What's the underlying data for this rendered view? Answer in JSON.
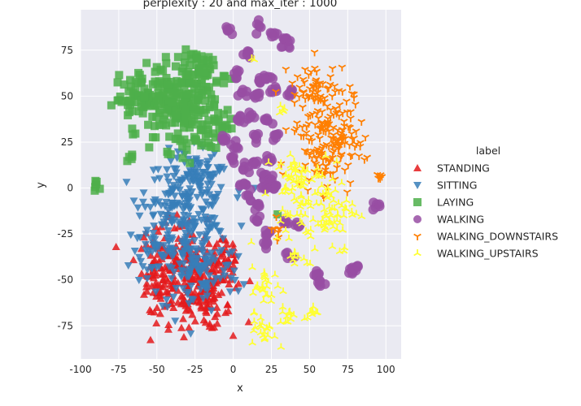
{
  "chart_data": {
    "type": "scatter",
    "title": "perplexity : 20 and max_iter : 1000",
    "xlabel": "x",
    "ylabel": "y",
    "xlim": [
      -100,
      110
    ],
    "ylim": [
      -93,
      97
    ],
    "xticks": [
      -100,
      -75,
      -50,
      -25,
      0,
      25,
      50,
      75,
      100
    ],
    "yticks": [
      -75,
      -50,
      -25,
      0,
      25,
      50,
      75
    ],
    "grid": true,
    "background": "#eaeaf2",
    "legend": {
      "title": "label",
      "placement": "right",
      "entries": [
        "STANDING",
        "SITTING",
        "LAYING",
        "WALKING",
        "WALKING_DOWNSTAIRS",
        "WALKING_UPSTAIRS"
      ]
    },
    "series": [
      {
        "name": "STANDING",
        "color": "#e41a1c",
        "marker": "triangle-up",
        "clusters": [
          {
            "cx": -28,
            "cy": -47,
            "sx": 14,
            "sy": 13,
            "n": 230
          },
          {
            "cx": -48,
            "cy": -42,
            "sx": 6,
            "sy": 12,
            "n": 60
          },
          {
            "cx": -18,
            "cy": -65,
            "sx": 8,
            "sy": 6,
            "n": 40
          },
          {
            "cx": -5,
            "cy": -40,
            "sx": 5,
            "sy": 9,
            "n": 30
          }
        ]
      },
      {
        "name": "SITTING",
        "color": "#377eb8",
        "marker": "triangle-down",
        "clusters": [
          {
            "cx": -30,
            "cy": -12,
            "sx": 14,
            "sy": 15,
            "n": 210
          },
          {
            "cx": -25,
            "cy": -45,
            "sx": 15,
            "sy": 12,
            "n": 120
          },
          {
            "cx": -52,
            "cy": -20,
            "sx": 5,
            "sy": 12,
            "n": 40
          },
          {
            "cx": -25,
            "cy": 8,
            "sx": 8,
            "sy": 6,
            "n": 40
          }
        ]
      },
      {
        "name": "LAYING",
        "color": "#4daf4a",
        "marker": "square",
        "clusters": [
          {
            "cx": -35,
            "cy": 45,
            "sx": 13,
            "sy": 12,
            "n": 230
          },
          {
            "cx": -62,
            "cy": 48,
            "sx": 8,
            "sy": 6,
            "n": 50
          },
          {
            "cx": -20,
            "cy": 65,
            "sx": 8,
            "sy": 5,
            "n": 40
          },
          {
            "cx": -10,
            "cy": 35,
            "sx": 5,
            "sy": 6,
            "n": 20
          },
          {
            "cx": -68,
            "cy": 15,
            "sx": 1.5,
            "sy": 2,
            "n": 5
          },
          {
            "cx": -89,
            "cy": 1,
            "sx": 2,
            "sy": 1.5,
            "n": 6
          },
          {
            "cx": 29,
            "cy": -14,
            "sx": 0.3,
            "sy": 0.3,
            "n": 1
          }
        ]
      },
      {
        "name": "WALKING",
        "color": "#984ea3",
        "marker": "circle",
        "points": [
          [
            -2,
            86
          ],
          [
            17,
            88
          ],
          [
            26,
            84
          ],
          [
            34,
            80
          ],
          [
            10,
            73
          ],
          [
            18,
            58
          ],
          [
            22,
            60
          ],
          [
            2,
            63
          ],
          [
            26,
            53
          ],
          [
            37,
            52
          ],
          [
            6,
            52
          ],
          [
            15,
            50
          ],
          [
            12,
            38
          ],
          [
            5,
            38
          ],
          [
            22,
            36
          ],
          [
            -6,
            27
          ],
          [
            0,
            22
          ],
          [
            15,
            28
          ],
          [
            28,
            28
          ],
          [
            23,
            16
          ],
          [
            14,
            14
          ],
          [
            0,
            17
          ],
          [
            8,
            10
          ],
          [
            20,
            5
          ],
          [
            25,
            5
          ],
          [
            8,
            2
          ],
          [
            22,
            0
          ],
          [
            27,
            0
          ],
          [
            10,
            -5
          ],
          [
            16,
            -10
          ],
          [
            15,
            -18
          ],
          [
            22,
            -25
          ],
          [
            22,
            -30
          ],
          [
            36,
            -37
          ],
          [
            42,
            -20
          ],
          [
            34,
            -20
          ],
          [
            55,
            -47
          ],
          [
            57,
            -52
          ],
          [
            78,
            -45
          ],
          [
            81,
            -43
          ],
          [
            93,
            -10
          ],
          [
            35,
            78
          ]
        ]
      },
      {
        "name": "WALKING_DOWNSTAIRS",
        "color": "#ff7f00",
        "marker": "tri-down",
        "clusters": [
          {
            "cx": 58,
            "cy": 32,
            "sx": 10,
            "sy": 16,
            "n": 160
          },
          {
            "cx": 72,
            "cy": 20,
            "sx": 6,
            "sy": 8,
            "n": 40
          },
          {
            "cx": 50,
            "cy": 55,
            "sx": 6,
            "sy": 6,
            "n": 30
          },
          {
            "cx": 96,
            "cy": 6,
            "sx": 2,
            "sy": 1.5,
            "n": 6
          },
          {
            "cx": 30,
            "cy": -22,
            "sx": 2,
            "sy": 3,
            "n": 8
          }
        ]
      },
      {
        "name": "WALKING_UPSTAIRS",
        "color": "#ffff33",
        "marker": "tri-up",
        "clusters": [
          {
            "cx": 55,
            "cy": -10,
            "sx": 13,
            "sy": 13,
            "n": 110
          },
          {
            "cx": 40,
            "cy": 8,
            "sx": 5,
            "sy": 6,
            "n": 30
          },
          {
            "cx": 22,
            "cy": -55,
            "sx": 5,
            "sy": 6,
            "n": 25
          },
          {
            "cx": 20,
            "cy": -78,
            "sx": 4,
            "sy": 4,
            "n": 20
          },
          {
            "cx": 35,
            "cy": -68,
            "sx": 3,
            "sy": 3,
            "n": 12
          },
          {
            "cx": 52,
            "cy": -68,
            "sx": 3,
            "sy": 2,
            "n": 10
          },
          {
            "cx": 42,
            "cy": -38,
            "sx": 3,
            "sy": 2,
            "n": 8
          },
          {
            "cx": 32,
            "cy": 42,
            "sx": 2,
            "sy": 2,
            "n": 5
          },
          {
            "cx": 12,
            "cy": 70,
            "sx": 1,
            "sy": 1,
            "n": 2
          }
        ]
      }
    ]
  }
}
